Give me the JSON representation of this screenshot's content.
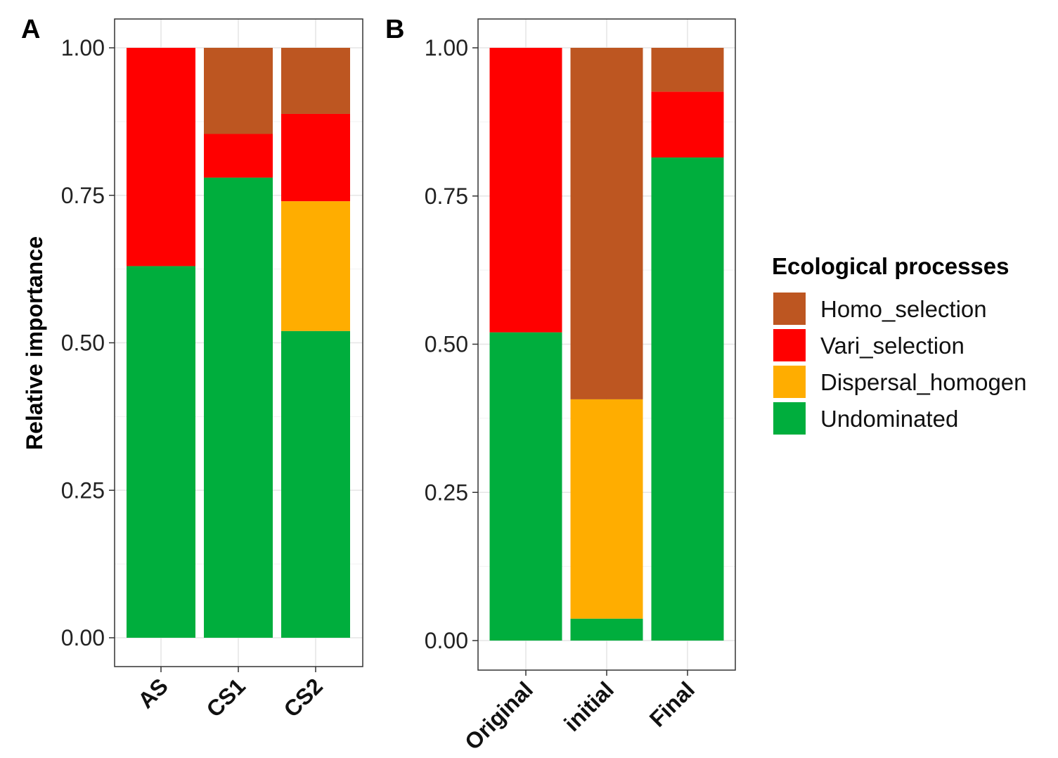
{
  "chart_data": [
    {
      "type": "bar",
      "stacked": true,
      "panel": "A",
      "ylabel": "Relative importance",
      "ylim": [
        0,
        1
      ],
      "yticks": [
        "0.00",
        "0.25",
        "0.50",
        "0.75",
        "1.00"
      ],
      "categories": [
        "AS",
        "CS1",
        "CS2"
      ],
      "series": [
        {
          "name": "Undominated",
          "values": [
            0.63,
            0.78,
            0.52
          ]
        },
        {
          "name": "Dispersal_homogen",
          "values": [
            0,
            0,
            0.22
          ]
        },
        {
          "name": "Vari_selection",
          "values": [
            0.37,
            0.074,
            0.148
          ]
        },
        {
          "name": "Homo_selection",
          "values": [
            0,
            0.146,
            0.112
          ]
        }
      ],
      "grid": true
    },
    {
      "type": "bar",
      "stacked": true,
      "panel": "B",
      "ylim": [
        0,
        1
      ],
      "yticks": [
        "0.00",
        "0.25",
        "0.50",
        "0.75",
        "1.00"
      ],
      "categories": [
        "Original",
        "initial",
        "Final"
      ],
      "series": [
        {
          "name": "Undominated",
          "values": [
            0.52,
            0.037,
            0.815
          ]
        },
        {
          "name": "Dispersal_homogen",
          "values": [
            0,
            0.37,
            0
          ]
        },
        {
          "name": "Vari_selection",
          "values": [
            0.48,
            0,
            0.111
          ]
        },
        {
          "name": "Homo_selection",
          "values": [
            0,
            0.593,
            0.074
          ]
        }
      ],
      "grid": true
    }
  ],
  "legend": {
    "title": "Ecological processes",
    "position": "right",
    "items": [
      {
        "name": "Homo_selection",
        "color": "#bd5621"
      },
      {
        "name": "Vari_selection",
        "color": "#ff0000"
      },
      {
        "name": "Dispersal_homogen",
        "color": "#ffad00"
      },
      {
        "name": "Undominated",
        "color": "#00ae3d"
      }
    ]
  }
}
